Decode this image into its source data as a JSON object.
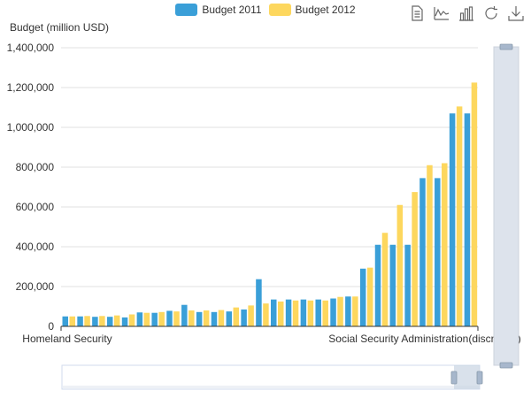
{
  "chart_data": {
    "type": "bar",
    "ylabel": "Budget (million USD)",
    "ylim": [
      0,
      1400000
    ],
    "yticks": [
      "0",
      "200,000",
      "400,000",
      "600,000",
      "800,000",
      "1,000,000",
      "1,200,000",
      "1,400,000"
    ],
    "ytick_values": [
      0,
      200000,
      400000,
      600000,
      800000,
      1000000,
      1200000,
      1400000
    ],
    "x_tick_labels": {
      "first": "Homeland Security",
      "last": "Social Security Administration(discretion)"
    },
    "grid": true,
    "legend_position": "top-center",
    "series": [
      {
        "name": "Budget 2011",
        "color": "#3a9fd8",
        "values": [
          50000,
          50000,
          48000,
          48000,
          45000,
          70000,
          68000,
          78000,
          108000,
          72000,
          72000,
          75000,
          85000,
          237000,
          135000,
          135000,
          135000,
          135000,
          140000,
          150000,
          290000,
          410000,
          410000,
          410000,
          745000,
          745000,
          1070000,
          1070000
        ]
      },
      {
        "name": "Budget 2012",
        "color": "#fdd75e",
        "values": [
          50000,
          52000,
          52000,
          55000,
          60000,
          68000,
          72000,
          75000,
          80000,
          80000,
          82000,
          95000,
          105000,
          115000,
          125000,
          130000,
          130000,
          130000,
          148000,
          150000,
          295000,
          470000,
          610000,
          675000,
          810000,
          820000,
          1105000,
          1225000
        ]
      }
    ]
  },
  "legend": {
    "items": [
      {
        "label": "Budget 2011",
        "color": "#3a9fd8"
      },
      {
        "label": "Budget 2012",
        "color": "#fdd75e"
      }
    ]
  },
  "toolbox": {
    "icons": [
      "data-view-icon",
      "line-chart-icon",
      "bar-chart-icon",
      "restore-icon",
      "save-image-icon"
    ]
  },
  "datazoom": {
    "vertical_range": [
      0,
      100
    ],
    "horizontal_range": [
      95,
      100
    ]
  }
}
